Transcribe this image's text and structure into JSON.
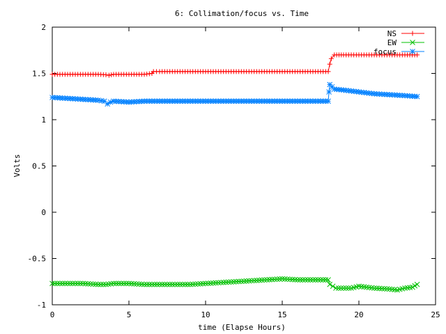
{
  "chart_data": {
    "type": "line",
    "title": "6: Collimation/focus vs. Time",
    "xlabel": "time (Elapse Hours)",
    "ylabel": "Volts",
    "xlim": [
      0,
      25
    ],
    "ylim": [
      -1,
      2
    ],
    "xticks": [
      0,
      5,
      10,
      15,
      20,
      25
    ],
    "xtick_labels": [
      "0",
      "5",
      "10",
      "15",
      "20",
      "25"
    ],
    "yticks": [
      -1,
      -0.5,
      0,
      0.5,
      1,
      1.5,
      2
    ],
    "ytick_labels": [
      "-1",
      "-0.5",
      "0",
      "0.5",
      "1",
      "1.5",
      "2"
    ],
    "grid": false,
    "legend_position": "top-right",
    "series": [
      {
        "name": "NS",
        "color": "#ff0000",
        "marker": "plus",
        "x": [
          0,
          1,
          2,
          3,
          3.5,
          3.7,
          4,
          5,
          6,
          6.5,
          6.6,
          7,
          8,
          9,
          10,
          11,
          12,
          13,
          14,
          15,
          16,
          17,
          18,
          18.1,
          18.2,
          18.4,
          19,
          20,
          21,
          22,
          23,
          23.8
        ],
        "y": [
          1.49,
          1.49,
          1.49,
          1.49,
          1.485,
          1.48,
          1.49,
          1.49,
          1.49,
          1.5,
          1.52,
          1.52,
          1.52,
          1.52,
          1.52,
          1.52,
          1.52,
          1.52,
          1.52,
          1.52,
          1.52,
          1.52,
          1.52,
          1.6,
          1.66,
          1.7,
          1.7,
          1.7,
          1.7,
          1.7,
          1.7,
          1.7
        ]
      },
      {
        "name": "EW",
        "color": "#00c000",
        "marker": "x",
        "x": [
          0,
          1,
          2,
          3,
          3.5,
          4,
          5,
          6,
          7,
          8,
          9,
          10,
          11,
          12,
          13,
          14,
          15,
          16,
          17,
          18,
          18.1,
          18.5,
          19,
          19.5,
          20,
          21,
          22,
          22.5,
          23,
          23.5,
          23.8
        ],
        "y": [
          -0.77,
          -0.77,
          -0.77,
          -0.78,
          -0.78,
          -0.77,
          -0.77,
          -0.78,
          -0.78,
          -0.78,
          -0.78,
          -0.77,
          -0.76,
          -0.75,
          -0.74,
          -0.73,
          -0.72,
          -0.73,
          -0.73,
          -0.73,
          -0.78,
          -0.82,
          -0.82,
          -0.82,
          -0.8,
          -0.82,
          -0.83,
          -0.84,
          -0.82,
          -0.81,
          -0.78
        ]
      },
      {
        "name": "focus",
        "color": "#0080ff",
        "marker": "star",
        "x": [
          0,
          1,
          2,
          3,
          3.4,
          3.6,
          3.8,
          4,
          5,
          6,
          7,
          8,
          9,
          10,
          11,
          12,
          13,
          14,
          15,
          16,
          17,
          18,
          18.05,
          18.1,
          18.4,
          19,
          20,
          21,
          22,
          23,
          23.8
        ],
        "y": [
          1.24,
          1.23,
          1.22,
          1.21,
          1.2,
          1.17,
          1.19,
          1.2,
          1.19,
          1.2,
          1.2,
          1.2,
          1.2,
          1.2,
          1.2,
          1.2,
          1.2,
          1.2,
          1.2,
          1.2,
          1.2,
          1.2,
          1.3,
          1.38,
          1.33,
          1.32,
          1.3,
          1.28,
          1.27,
          1.26,
          1.25
        ]
      }
    ]
  }
}
